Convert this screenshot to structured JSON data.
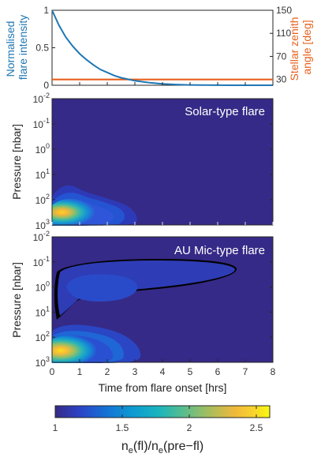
{
  "chart_data": [
    {
      "type": "line",
      "panel": "top",
      "ylabel_left": [
        "Normalised",
        "flare intensity"
      ],
      "ylabel_right": [
        "Stellar zenith",
        "angle [deg]"
      ],
      "left_ticks": [
        "0",
        "0.5",
        "1"
      ],
      "right_ticks": [
        "30",
        "70",
        "110",
        "150"
      ],
      "xlim": [
        0,
        8
      ],
      "ylim_left": [
        0,
        1
      ],
      "ylim_right": [
        20,
        150
      ],
      "colors": {
        "intensity": "#1f77b4",
        "zenith": "#e8601c"
      },
      "series": [
        {
          "name": "",
          "axis": "left",
          "x": [
            0,
            0.25,
            0.5,
            0.75,
            1,
            1.25,
            1.5,
            1.75,
            2,
            2.25,
            2.5,
            2.75,
            3,
            3.5,
            4,
            4.5,
            5,
            5.5,
            6,
            6.5,
            7,
            7.5,
            8
          ],
          "values": [
            1,
            0.8,
            0.64,
            0.52,
            0.42,
            0.34,
            0.27,
            0.21,
            0.17,
            0.13,
            0.1,
            0.08,
            0.06,
            0.035,
            0.018,
            0.009,
            0.004,
            0.002,
            0.001,
            0,
            0,
            0,
            0
          ]
        },
        {
          "name": "",
          "axis": "right",
          "x": [
            0,
            8
          ],
          "values": [
            30,
            30
          ]
        }
      ]
    },
    {
      "type": "heatmap",
      "panel": "middle",
      "title": "Solar-type flare",
      "ylabel": "Pressure [nbar]",
      "ytick_exponents": [
        "-2",
        "-1",
        "0",
        "1",
        "2",
        "3"
      ],
      "xlim": [
        0,
        8
      ],
      "ylim_log10": [
        -2,
        3
      ]
    },
    {
      "type": "heatmap",
      "panel": "bottom",
      "title": "AU Mic-type flare",
      "ylabel": "Pressure [nbar]",
      "xlabel": "Time from flare onset [hrs]",
      "xticks": [
        "0",
        "1",
        "2",
        "3",
        "4",
        "5",
        "6",
        "7",
        "8"
      ],
      "ytick_exponents": [
        "-2",
        "-1",
        "0",
        "1",
        "2",
        "3"
      ],
      "xlim": [
        0,
        8
      ],
      "ylim_log10": [
        -2,
        3
      ]
    },
    {
      "type": "colorbar",
      "label_main": "n",
      "label_sub1": "e",
      "label_mid": "(fl)/n",
      "label_sub2": "e",
      "label_end": "(pre−fl)",
      "ticks": [
        "1",
        "1.5",
        "2",
        "2.5"
      ],
      "tick_values": [
        1,
        1.5,
        2,
        2.5
      ],
      "range": [
        1,
        2.6
      ]
    }
  ]
}
